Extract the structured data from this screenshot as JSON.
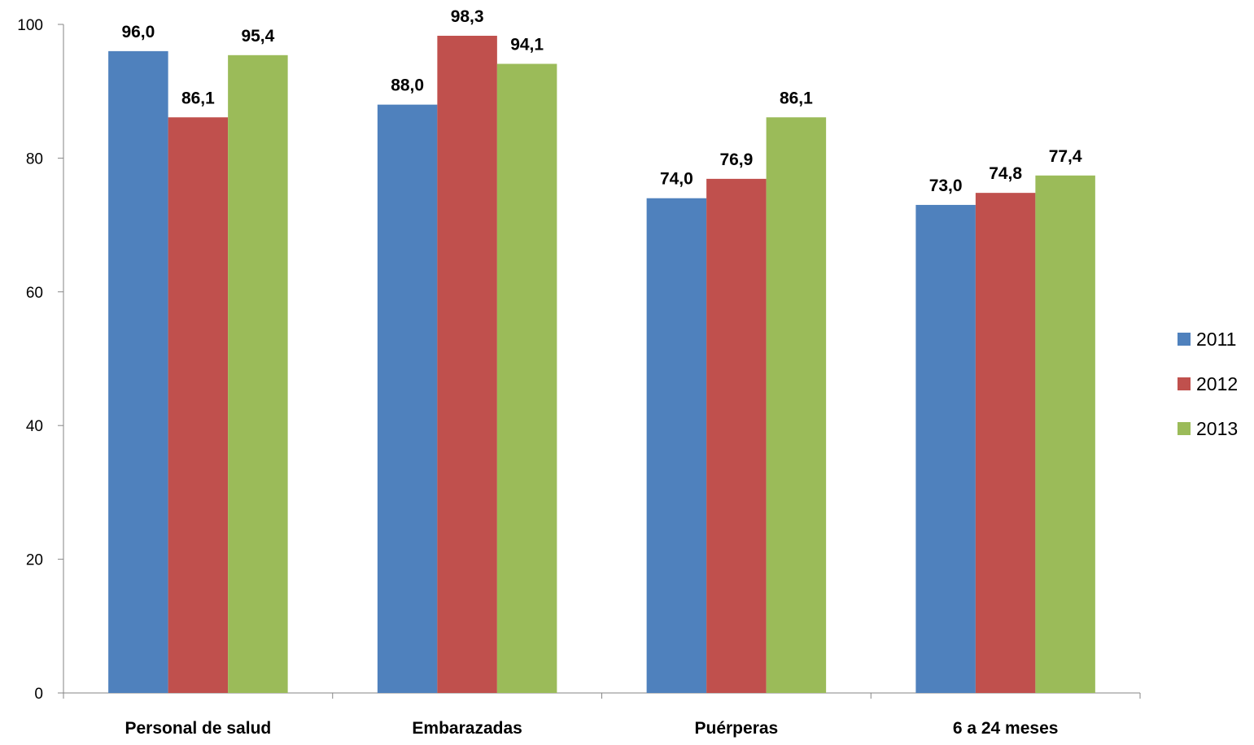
{
  "chart_data": {
    "type": "bar",
    "categories": [
      "Personal de salud",
      "Embarazadas",
      "Puérperas",
      "6 a 24 meses"
    ],
    "series": [
      {
        "name": "2011",
        "color": "#4F81BD",
        "values": [
          96.0,
          88.0,
          74.0,
          73.0
        ],
        "labels": [
          "96,0",
          "88,0",
          "74,0",
          "73,0"
        ]
      },
      {
        "name": "2012",
        "color": "#C0504D",
        "values": [
          86.1,
          98.3,
          76.9,
          74.8
        ],
        "labels": [
          "86,1",
          "98,3",
          "76,9",
          "74,8"
        ]
      },
      {
        "name": "2013",
        "color": "#9BBB59",
        "values": [
          95.4,
          94.1,
          86.1,
          77.4
        ],
        "labels": [
          "95,4",
          "94,1",
          "86,1",
          "77,4"
        ]
      }
    ],
    "y_ticks": [
      "0",
      "20",
      "40",
      "60",
      "80",
      "100"
    ],
    "ylim": [
      0,
      100
    ],
    "grid": false,
    "legend_position": "right"
  }
}
